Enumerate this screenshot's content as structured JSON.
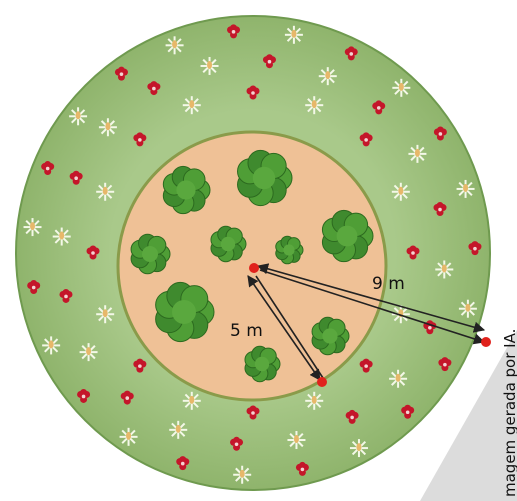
{
  "labels": {
    "outer_radius": "9 m",
    "inner_radius": "5 m"
  },
  "credit": "magem gerada por IA."
}
